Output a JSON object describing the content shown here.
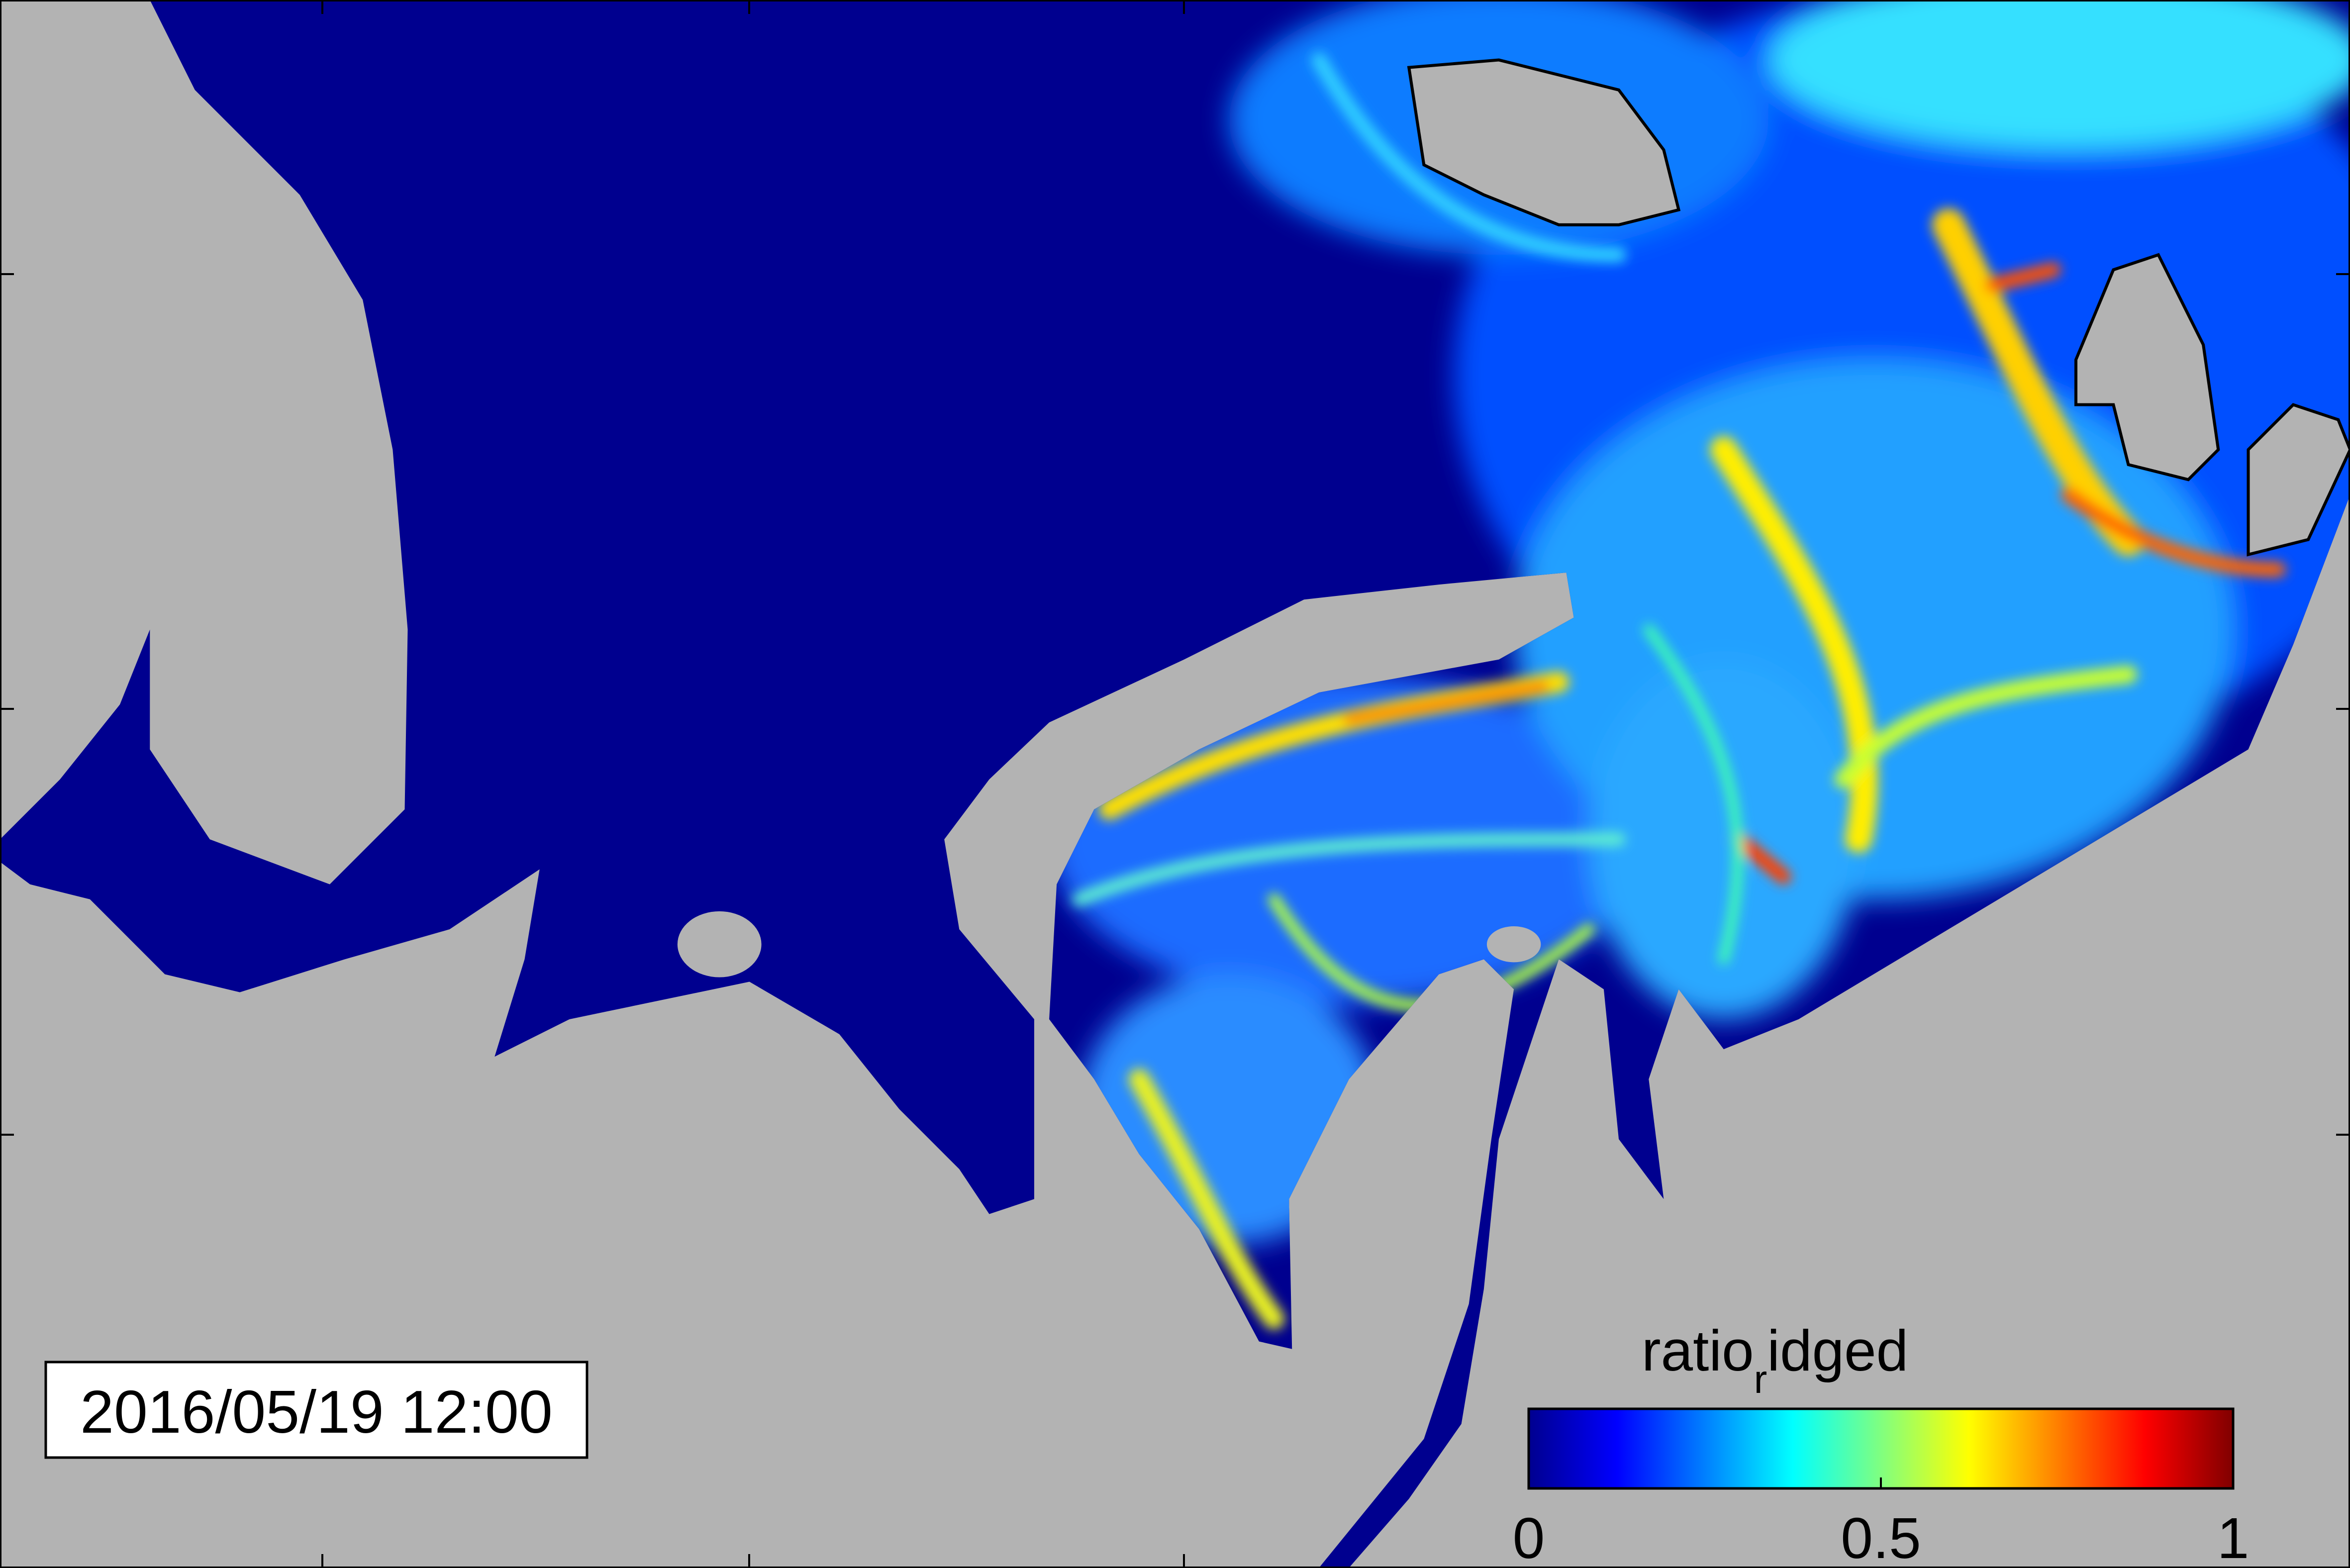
{
  "timestamp": "2016/05/19 12:00",
  "colorbar": {
    "label_parts": [
      "ratio",
      "r",
      "idged"
    ],
    "range": [
      0,
      1
    ],
    "ticks": [
      0,
      0.5,
      1
    ],
    "colormap": "jet"
  }
}
